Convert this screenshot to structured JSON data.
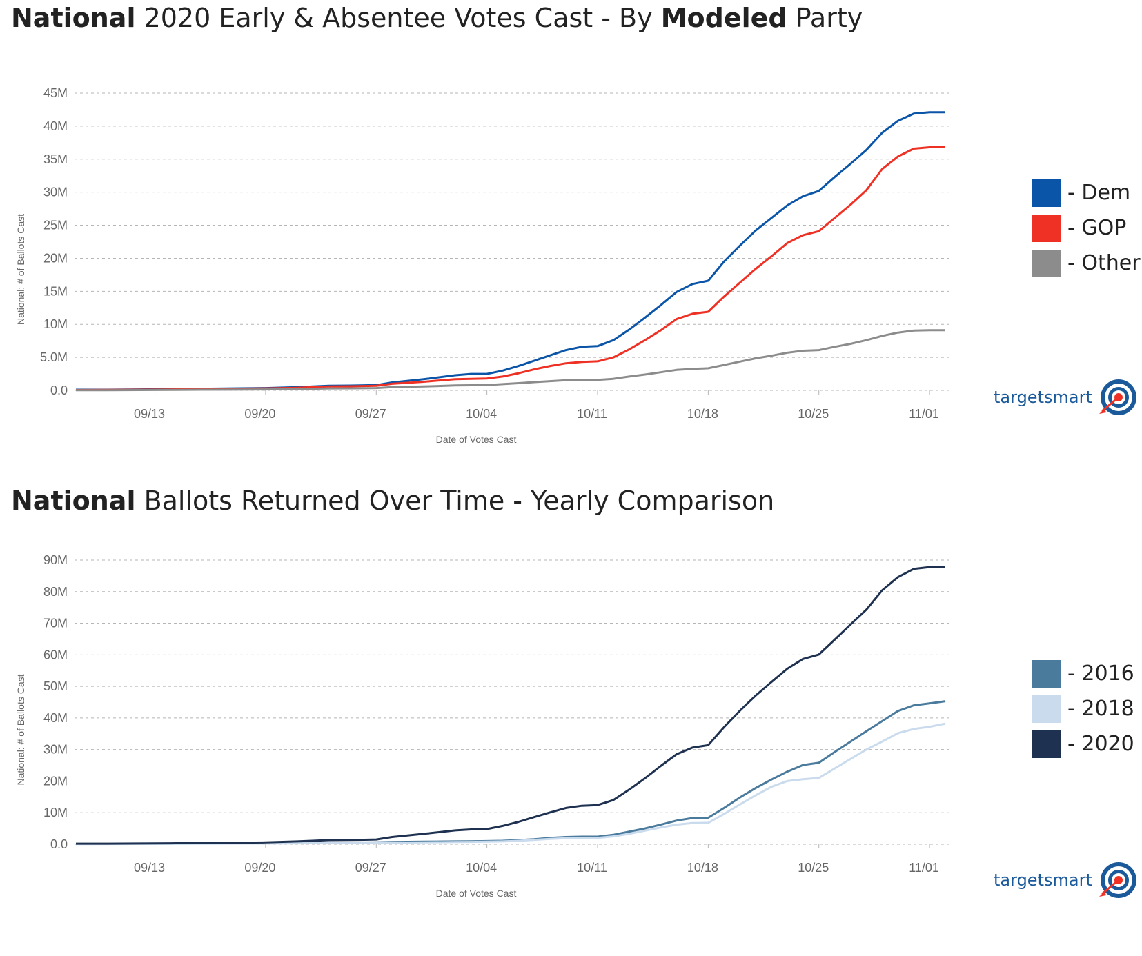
{
  "chart_data": [
    {
      "type": "line",
      "title_bold": "National",
      "title_mid": "2020 Early & Absentee Votes Cast - By",
      "title_bold2": "Modeled",
      "title_end": "Party",
      "xlabel": "Date of Votes Cast",
      "ylabel": "National: # of Ballots Cast",
      "ylim": [
        0,
        45000000
      ],
      "yticks": [
        0,
        5000000,
        10000000,
        15000000,
        20000000,
        25000000,
        30000000,
        35000000,
        40000000,
        45000000
      ],
      "ytick_labels": [
        "0.0",
        "5.0M",
        "10M",
        "15M",
        "20M",
        "25M",
        "30M",
        "35M",
        "40M",
        "45M"
      ],
      "xlim": [
        0,
        55
      ],
      "xticks": [
        5,
        12,
        19,
        26,
        33,
        40,
        47,
        54
      ],
      "xtick_labels": [
        "09/13",
        "09/20",
        "09/27",
        "10/04",
        "10/11",
        "10/18",
        "10/25",
        "11/01"
      ],
      "grid": true,
      "x": [
        0,
        2,
        4,
        6,
        8,
        10,
        12,
        14,
        16,
        18,
        19,
        20,
        22,
        24,
        25,
        26,
        27,
        28,
        29,
        30,
        31,
        32,
        33,
        34,
        35,
        36,
        37,
        38,
        39,
        40,
        41,
        42,
        43,
        44,
        45,
        46,
        47,
        48,
        49,
        50,
        51,
        52,
        53,
        54,
        55
      ],
      "series": [
        {
          "name": "Dem",
          "color": "#0b55a8",
          "values": [
            0.1,
            0.1,
            0.15,
            0.2,
            0.25,
            0.3,
            0.35,
            0.5,
            0.7,
            0.75,
            0.8,
            1.2,
            1.7,
            2.3,
            2.5,
            2.5,
            3.0,
            3.7,
            4.5,
            5.3,
            6.1,
            6.6,
            6.7,
            7.6,
            9.2,
            11.0,
            12.9,
            14.9,
            16.1,
            16.6,
            19.5,
            21.9,
            24.2,
            26.1,
            28.0,
            29.4,
            30.2,
            32.3,
            34.3,
            36.4,
            39.0,
            40.8,
            41.9,
            42.1,
            42.1
          ]
        },
        {
          "name": "GOP",
          "color": "#ee3124",
          "values": [
            0.05,
            0.08,
            0.1,
            0.15,
            0.2,
            0.25,
            0.3,
            0.4,
            0.6,
            0.65,
            0.7,
            1.0,
            1.3,
            1.7,
            1.75,
            1.8,
            2.1,
            2.6,
            3.2,
            3.7,
            4.1,
            4.3,
            4.4,
            5.0,
            6.2,
            7.6,
            9.1,
            10.8,
            11.6,
            11.9,
            14.2,
            16.3,
            18.4,
            20.3,
            22.3,
            23.5,
            24.1,
            26.1,
            28.1,
            30.3,
            33.5,
            35.4,
            36.6,
            36.8,
            36.8
          ]
        },
        {
          "name": "Other",
          "color": "#8c8c8c",
          "values": [
            0.02,
            0.03,
            0.05,
            0.07,
            0.1,
            0.12,
            0.15,
            0.2,
            0.3,
            0.32,
            0.35,
            0.5,
            0.6,
            0.75,
            0.78,
            0.8,
            0.95,
            1.1,
            1.25,
            1.4,
            1.55,
            1.6,
            1.6,
            1.75,
            2.1,
            2.4,
            2.75,
            3.1,
            3.25,
            3.35,
            3.85,
            4.35,
            4.85,
            5.25,
            5.7,
            6.0,
            6.1,
            6.6,
            7.05,
            7.6,
            8.25,
            8.75,
            9.05,
            9.1,
            9.1
          ]
        }
      ]
    },
    {
      "type": "line",
      "title_bold": "National",
      "title_rest": "Ballots Returned Over Time - Yearly Comparison",
      "xlabel": "Date of Votes Cast",
      "ylabel": "National: # of Ballots Cast",
      "ylim": [
        0,
        90000000
      ],
      "yticks": [
        0,
        10000000,
        20000000,
        30000000,
        40000000,
        50000000,
        60000000,
        70000000,
        80000000,
        90000000
      ],
      "ytick_labels": [
        "0.0",
        "10M",
        "20M",
        "30M",
        "40M",
        "50M",
        "60M",
        "70M",
        "80M",
        "90M"
      ],
      "xlim": [
        0,
        55
      ],
      "xticks": [
        5,
        12,
        19,
        26,
        33,
        40,
        47,
        54
      ],
      "xtick_labels": [
        "09/13",
        "09/20",
        "09/27",
        "10/04",
        "10/11",
        "10/18",
        "10/25",
        "11/01"
      ],
      "grid": true,
      "x": [
        0,
        2,
        4,
        6,
        8,
        10,
        12,
        14,
        16,
        18,
        19,
        20,
        22,
        24,
        25,
        26,
        27,
        28,
        29,
        30,
        31,
        32,
        33,
        34,
        35,
        36,
        37,
        38,
        39,
        40,
        41,
        42,
        43,
        44,
        45,
        46,
        47,
        48,
        49,
        50,
        51,
        52,
        53,
        54,
        55
      ],
      "series": [
        {
          "name": "2016",
          "color": "#4a7a9c",
          "values": [
            0.1,
            0.1,
            0.15,
            0.2,
            0.25,
            0.3,
            0.35,
            0.4,
            0.5,
            0.55,
            0.6,
            0.7,
            0.8,
            0.9,
            0.95,
            1.0,
            1.1,
            1.3,
            1.6,
            2.0,
            2.3,
            2.4,
            2.4,
            3.0,
            4.0,
            5.0,
            6.2,
            7.5,
            8.3,
            8.4,
            11.5,
            14.8,
            17.8,
            20.5,
            23.0,
            25.1,
            25.8,
            29.2,
            32.5,
            35.8,
            39.0,
            42.2,
            44.0,
            44.6,
            45.3
          ]
        },
        {
          "name": "2018",
          "color": "#c9dbec",
          "values": [
            0.05,
            0.08,
            0.1,
            0.12,
            0.15,
            0.2,
            0.25,
            0.3,
            0.35,
            0.4,
            0.45,
            0.5,
            0.6,
            0.7,
            0.75,
            0.8,
            0.9,
            1.1,
            1.4,
            1.7,
            1.9,
            2.0,
            2.0,
            2.5,
            3.3,
            4.3,
            5.3,
            6.2,
            6.7,
            6.8,
            9.6,
            12.6,
            15.5,
            18.2,
            20.0,
            20.6,
            21.0,
            24.0,
            27.0,
            30.0,
            32.5,
            35.2,
            36.5,
            37.2,
            38.2
          ]
        },
        {
          "name": "2020",
          "color": "#1e3150",
          "values": [
            0.2,
            0.2,
            0.25,
            0.3,
            0.4,
            0.5,
            0.6,
            0.9,
            1.3,
            1.4,
            1.5,
            2.3,
            3.3,
            4.4,
            4.7,
            4.8,
            5.8,
            7.1,
            8.6,
            10.1,
            11.5,
            12.2,
            12.4,
            14.0,
            17.3,
            20.9,
            24.8,
            28.5,
            30.6,
            31.4,
            37.1,
            42.3,
            47.1,
            51.4,
            55.6,
            58.7,
            60.1,
            64.8,
            69.6,
            74.3,
            80.4,
            84.6,
            87.2,
            87.8,
            87.8
          ]
        }
      ]
    }
  ],
  "brand": {
    "part1": "target",
    "part2": "smart"
  }
}
